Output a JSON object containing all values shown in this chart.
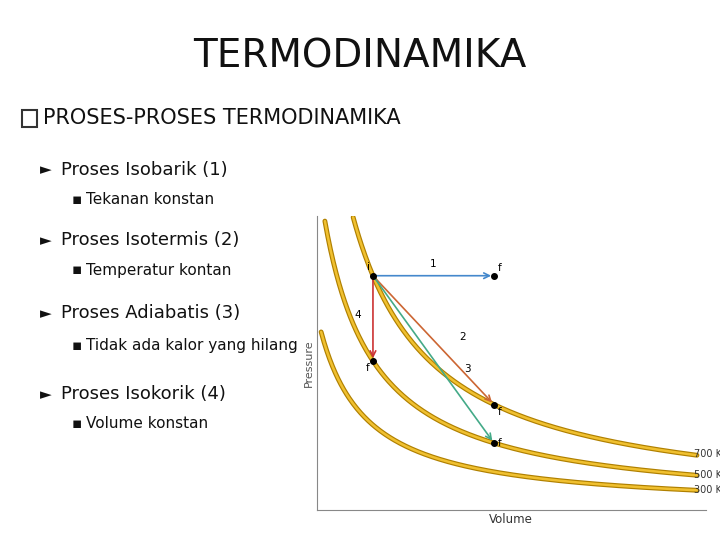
{
  "title": "TERMODINAMIKA",
  "title_fontsize": 28,
  "title_fontweight": "normal",
  "bg_color": "#ffffff",
  "main_bullet": "PROSES-PROSES TERMODINAMIKA",
  "main_bullet_fontsize": 15,
  "items": [
    {
      "heading": "Proses Isobarik (1)",
      "sub": "Tekanan konstan",
      "heading_fontsize": 13,
      "sub_fontsize": 11
    },
    {
      "heading": "Proses Isotermis (2)",
      "sub": "Temperatur kontan",
      "heading_fontsize": 13,
      "sub_fontsize": 11
    },
    {
      "heading": "Proses Adiabatis (3)",
      "sub": "Tidak ada kalor yang hilang",
      "heading_fontsize": 13,
      "sub_fontsize": 11
    },
    {
      "heading": "Proses Isokorik (4)",
      "sub": "Volume konstan",
      "heading_fontsize": 13,
      "sub_fontsize": 11
    }
  ],
  "graph": {
    "x_min": 0.5,
    "x_max": 5.0,
    "y_min": 0.0,
    "y_max": 6.0,
    "curve_outer_color": "#c8a000",
    "curve_inner_color": "#ffe066",
    "bg_color": "#ffffff",
    "temps": [
      "700 K",
      "500 K",
      "300 K"
    ],
    "xlabel": "Volume",
    "ylabel": "Pressure",
    "curve_constants": [
      5.5,
      3.5,
      2.0
    ],
    "proc1_color": "#4488cc",
    "proc2_color": "#cc6633",
    "proc3_color": "#44aa88",
    "proc4_color": "#cc3333"
  }
}
